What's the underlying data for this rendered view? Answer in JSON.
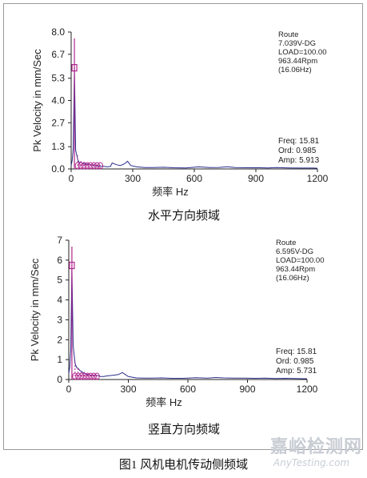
{
  "chart_data": [
    {
      "type": "line",
      "title": "",
      "xlabel": "频率 Hz",
      "ylabel": "Pk Velocity in mm/Sec",
      "xlim": [
        0,
        1200
      ],
      "ylim": [
        0,
        8.0
      ],
      "xticks": [
        "0",
        "300",
        "600",
        "900",
        "1200"
      ],
      "yticks": [
        "0.0",
        "1.3",
        "2.7",
        "4.0",
        "5.3",
        "6.7",
        "8.0"
      ],
      "ytick_values": [
        0,
        1.3,
        2.7,
        4.0,
        5.3,
        6.7,
        8.0
      ],
      "grid": false,
      "info": [
        "Route",
        "7.039V-DG",
        "LOAD=100.00",
        "963.44Rpm",
        "(16.06Hz)"
      ],
      "marker": [
        "Freq: 15.81",
        "Ord: 0.985",
        "Amp: 5.913"
      ],
      "peak": {
        "x": 15.81,
        "y": 5.913
      },
      "series": [
        {
          "x": [
            0,
            5,
            10,
            15.81,
            22,
            32,
            40,
            48,
            56,
            64,
            72,
            80,
            96,
            112,
            128,
            144,
            160,
            176,
            192,
            200,
            220,
            240,
            260,
            275,
            290,
            320,
            360,
            400,
            450,
            500,
            560,
            620,
            680,
            720,
            760,
            800,
            860,
            920,
            960,
            1000,
            1060,
            1120,
            1180,
            1200
          ],
          "y": [
            0.2,
            0.5,
            1.2,
            5.913,
            1.1,
            0.55,
            0.35,
            0.4,
            0.3,
            0.35,
            0.25,
            0.3,
            0.25,
            0.2,
            0.18,
            0.15,
            0.15,
            0.12,
            0.15,
            0.35,
            0.25,
            0.2,
            0.3,
            0.45,
            0.2,
            0.12,
            0.08,
            0.08,
            0.1,
            0.07,
            0.06,
            0.12,
            0.08,
            0.09,
            0.13,
            0.08,
            0.07,
            0.07,
            0.06,
            0.08,
            0.06,
            0.05,
            0.05,
            0.04
          ]
        }
      ],
      "harmonics_x": [
        15.81,
        31.6,
        47.4,
        63.2,
        79,
        94.8,
        110.7,
        126.5,
        142.3
      ],
      "harmonics_y": [
        5.913,
        0.8,
        0.55,
        0.4,
        0.35,
        0.3,
        0.28,
        0.25,
        0.22
      ],
      "colors": {
        "trace": "#2b2f8c",
        "cursor": "#b0268c",
        "axis": "#222222"
      },
      "caption": "水平方向频域"
    },
    {
      "type": "line",
      "title": "",
      "xlabel": "频率 Hz",
      "ylabel": "Pk Velocity in mm/Sec",
      "xlim": [
        0,
        1200
      ],
      "ylim": [
        0,
        7
      ],
      "xticks": [
        "0",
        "300",
        "600",
        "900",
        "1200"
      ],
      "yticks": [
        "0",
        "1",
        "2",
        "3",
        "4",
        "5",
        "6",
        "7"
      ],
      "ytick_values": [
        0,
        1,
        2,
        3,
        4,
        5,
        6,
        7
      ],
      "grid": false,
      "info": [
        "Route",
        "6.595V-DG",
        "LOAD=100.00",
        "963.44Rpm",
        "(16.06Hz)"
      ],
      "marker": [
        "Freq: 15.81",
        "Ord: 0.985",
        "Amp: 5.731"
      ],
      "peak": {
        "x": 15.81,
        "y": 5.731
      },
      "series": [
        {
          "x": [
            0,
            5,
            10,
            15.81,
            22,
            32,
            40,
            48,
            56,
            64,
            72,
            80,
            96,
            112,
            128,
            144,
            160,
            176,
            192,
            210,
            230,
            250,
            270,
            285,
            300,
            340,
            380,
            420,
            470,
            520,
            580,
            640,
            700,
            740,
            780,
            830,
            880,
            940,
            990,
            1040,
            1090,
            1140,
            1180,
            1200
          ],
          "y": [
            0.3,
            0.6,
            1.5,
            5.731,
            1.7,
            0.8,
            0.6,
            0.55,
            0.45,
            0.4,
            0.35,
            0.3,
            0.25,
            0.22,
            0.2,
            0.2,
            0.15,
            0.15,
            0.18,
            0.2,
            0.22,
            0.25,
            0.35,
            0.25,
            0.15,
            0.08,
            0.07,
            0.07,
            0.08,
            0.06,
            0.06,
            0.09,
            0.07,
            0.1,
            0.08,
            0.07,
            0.07,
            0.06,
            0.07,
            0.05,
            0.06,
            0.05,
            0.04,
            0.04
          ]
        }
      ],
      "harmonics_x": [
        15.81,
        31.6,
        47.4,
        63.2,
        79,
        94.8,
        110.7,
        126.5,
        142.3
      ],
      "harmonics_y": [
        5.731,
        0.9,
        0.6,
        0.45,
        0.38,
        0.3,
        0.28,
        0.25,
        0.22
      ],
      "colors": {
        "trace": "#2b2f8c",
        "cursor": "#b0268c",
        "axis": "#222222"
      },
      "caption": "竖直方向频域"
    }
  ],
  "figure": {
    "caption": "图1    风机电机传动侧频域"
  },
  "watermark": {
    "cn": "嘉峪检测网",
    "en": "AnyTesting.com"
  }
}
